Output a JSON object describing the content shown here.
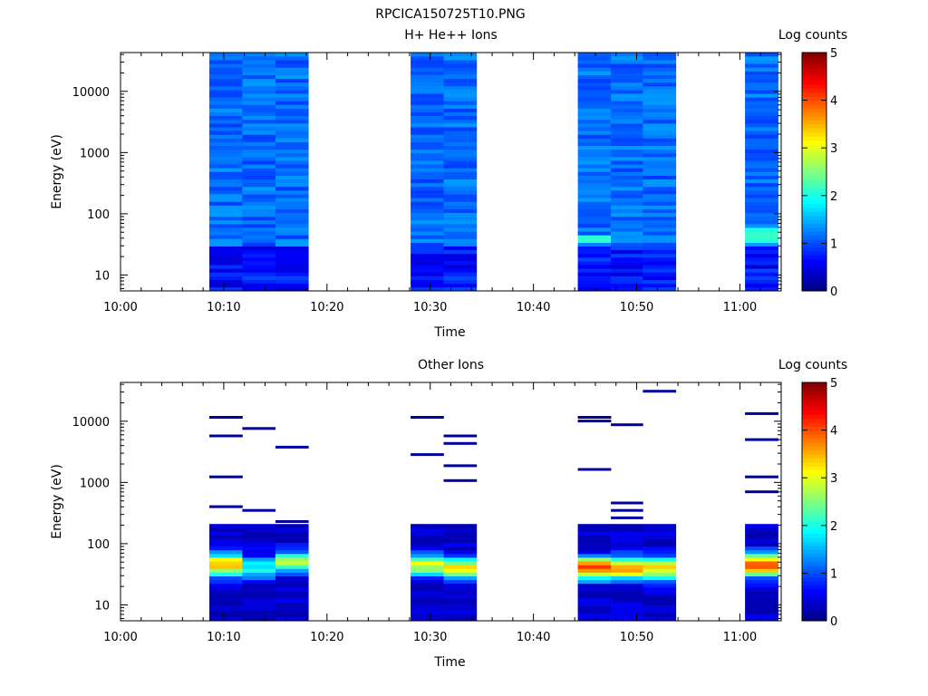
{
  "figure_title": "RPCICA150725T10.PNG",
  "colors": {
    "colormap": [
      "#00007f",
      "#0000ff",
      "#007fff",
      "#00ffff",
      "#7fff7f",
      "#ffff00",
      "#ff7f00",
      "#ff0000",
      "#7f0000"
    ]
  },
  "chart_data": [
    {
      "type": "heatmap",
      "title": "H+ He++ Ions",
      "xlabel": "Time",
      "ylabel": "Energy (eV)",
      "x_ticks": [
        "10:00",
        "10:10",
        "10:20",
        "10:30",
        "10:40",
        "10:50",
        "11:00"
      ],
      "x_range_minutes": [
        0,
        64
      ],
      "y_ticks": [
        "10",
        "100",
        "1000",
        "10000"
      ],
      "y_range": [
        5.5,
        43000
      ],
      "y_scale": "log",
      "colorbar": {
        "label": "Log counts",
        "range": [
          0,
          5
        ],
        "ticks": [
          "0",
          "1",
          "2",
          "3",
          "4",
          "5"
        ]
      },
      "sweeps": [
        {
          "start_min": 8.6,
          "end_min": 11.8,
          "profile": "plasma_bg"
        },
        {
          "start_min": 11.8,
          "end_min": 15.0,
          "profile": "plasma_bg"
        },
        {
          "start_min": 15.0,
          "end_min": 18.2,
          "profile": "plasma_bg"
        },
        {
          "start_min": 28.1,
          "end_min": 31.3,
          "profile": "plasma_bg"
        },
        {
          "start_min": 31.3,
          "end_min": 34.5,
          "profile": "plasma_bg"
        },
        {
          "start_min": 44.3,
          "end_min": 47.5,
          "profile": "plasma_bg_peak40"
        },
        {
          "start_min": 47.5,
          "end_min": 50.6,
          "profile": "plasma_bg"
        },
        {
          "start_min": 50.6,
          "end_min": 53.8,
          "profile": "plasma_bg"
        },
        {
          "start_min": 60.5,
          "end_min": 63.7,
          "profile": "plasma_bg_peak45"
        }
      ]
    },
    {
      "type": "heatmap",
      "title": "Other Ions",
      "xlabel": "Time",
      "ylabel": "Energy (eV)",
      "x_ticks": [
        "10:00",
        "10:10",
        "10:20",
        "10:30",
        "10:40",
        "10:50",
        "11:00"
      ],
      "x_range_minutes": [
        0,
        64
      ],
      "y_ticks": [
        "10",
        "100",
        "1000",
        "10000"
      ],
      "y_range": [
        5.5,
        43000
      ],
      "y_scale": "log",
      "colorbar": {
        "label": "Log counts",
        "range": [
          0,
          5
        ],
        "ticks": [
          "0",
          "1",
          "2",
          "3",
          "4",
          "5"
        ]
      },
      "sweeps": [
        {
          "start_min": 8.6,
          "end_min": 11.8,
          "peak_eV": 45,
          "peak_level": 3.3
        },
        {
          "start_min": 11.8,
          "end_min": 15.0,
          "peak_eV": 40,
          "peak_level": 1.6
        },
        {
          "start_min": 15.0,
          "end_min": 18.2,
          "peak_eV": 50,
          "peak_level": 2.4
        },
        {
          "start_min": 28.1,
          "end_min": 31.3,
          "peak_eV": 45,
          "peak_level": 2.6
        },
        {
          "start_min": 31.3,
          "end_min": 34.5,
          "peak_eV": 40,
          "peak_level": 2.8
        },
        {
          "start_min": 44.3,
          "end_min": 47.5,
          "peak_eV": 40,
          "peak_level": 3.6
        },
        {
          "start_min": 47.5,
          "end_min": 50.6,
          "peak_eV": 40,
          "peak_level": 3.4
        },
        {
          "start_min": 50.6,
          "end_min": 53.8,
          "peak_eV": 40,
          "peak_level": 3.0
        },
        {
          "start_min": 60.5,
          "end_min": 63.7,
          "peak_eV": 45,
          "peak_level": 3.7
        }
      ]
    }
  ]
}
